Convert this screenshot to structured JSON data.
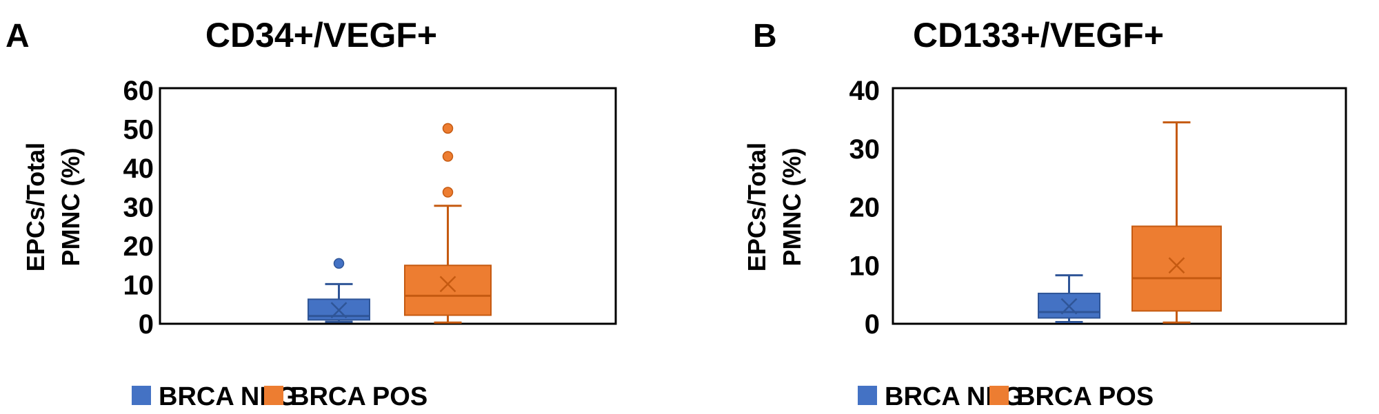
{
  "chart_data": [
    {
      "type": "box",
      "panel_label": "A",
      "title": "CD34+/VEGF+",
      "ylabel_line1": "EPCs/Total",
      "ylabel_line2": "PMNC (%)",
      "ylim": [
        0,
        60
      ],
      "yticks": [
        "0",
        "10",
        "20",
        "30",
        "40",
        "50",
        "60"
      ],
      "grid": false,
      "legend_position": "bottom",
      "series": [
        {
          "name": "BRCA NEG",
          "color": "#4472C4",
          "min": 0.5,
          "q1": 1.0,
          "median": 2.0,
          "q3": 6.3,
          "max": 10.2,
          "mean": 3.5,
          "outliers": [
            15.5
          ]
        },
        {
          "name": "BRCA POS",
          "color": "#ED7D31",
          "min": 0.3,
          "q1": 2.2,
          "median": 7.2,
          "q3": 15.0,
          "max": 30.3,
          "mean": 10.2,
          "outliers": [
            33.8,
            43.0,
            50.2
          ]
        }
      ]
    },
    {
      "type": "box",
      "panel_label": "B",
      "title": "CD133+/VEGF+",
      "ylabel_line1": "EPCs/Total",
      "ylabel_line2": "PMNC (%)",
      "ylim": [
        0,
        40
      ],
      "yticks": [
        "0",
        "10",
        "20",
        "30",
        "40"
      ],
      "grid": false,
      "legend_position": "bottom",
      "series": [
        {
          "name": "BRCA NEG",
          "color": "#4472C4",
          "min": 0.3,
          "q1": 1.0,
          "median": 2.0,
          "q3": 5.2,
          "max": 8.3,
          "mean": 3.0,
          "outliers": []
        },
        {
          "name": "BRCA POS",
          "color": "#ED7D31",
          "min": 0.2,
          "q1": 2.2,
          "median": 7.8,
          "q3": 16.7,
          "max": 34.5,
          "mean": 10.0,
          "outliers": []
        }
      ]
    }
  ]
}
